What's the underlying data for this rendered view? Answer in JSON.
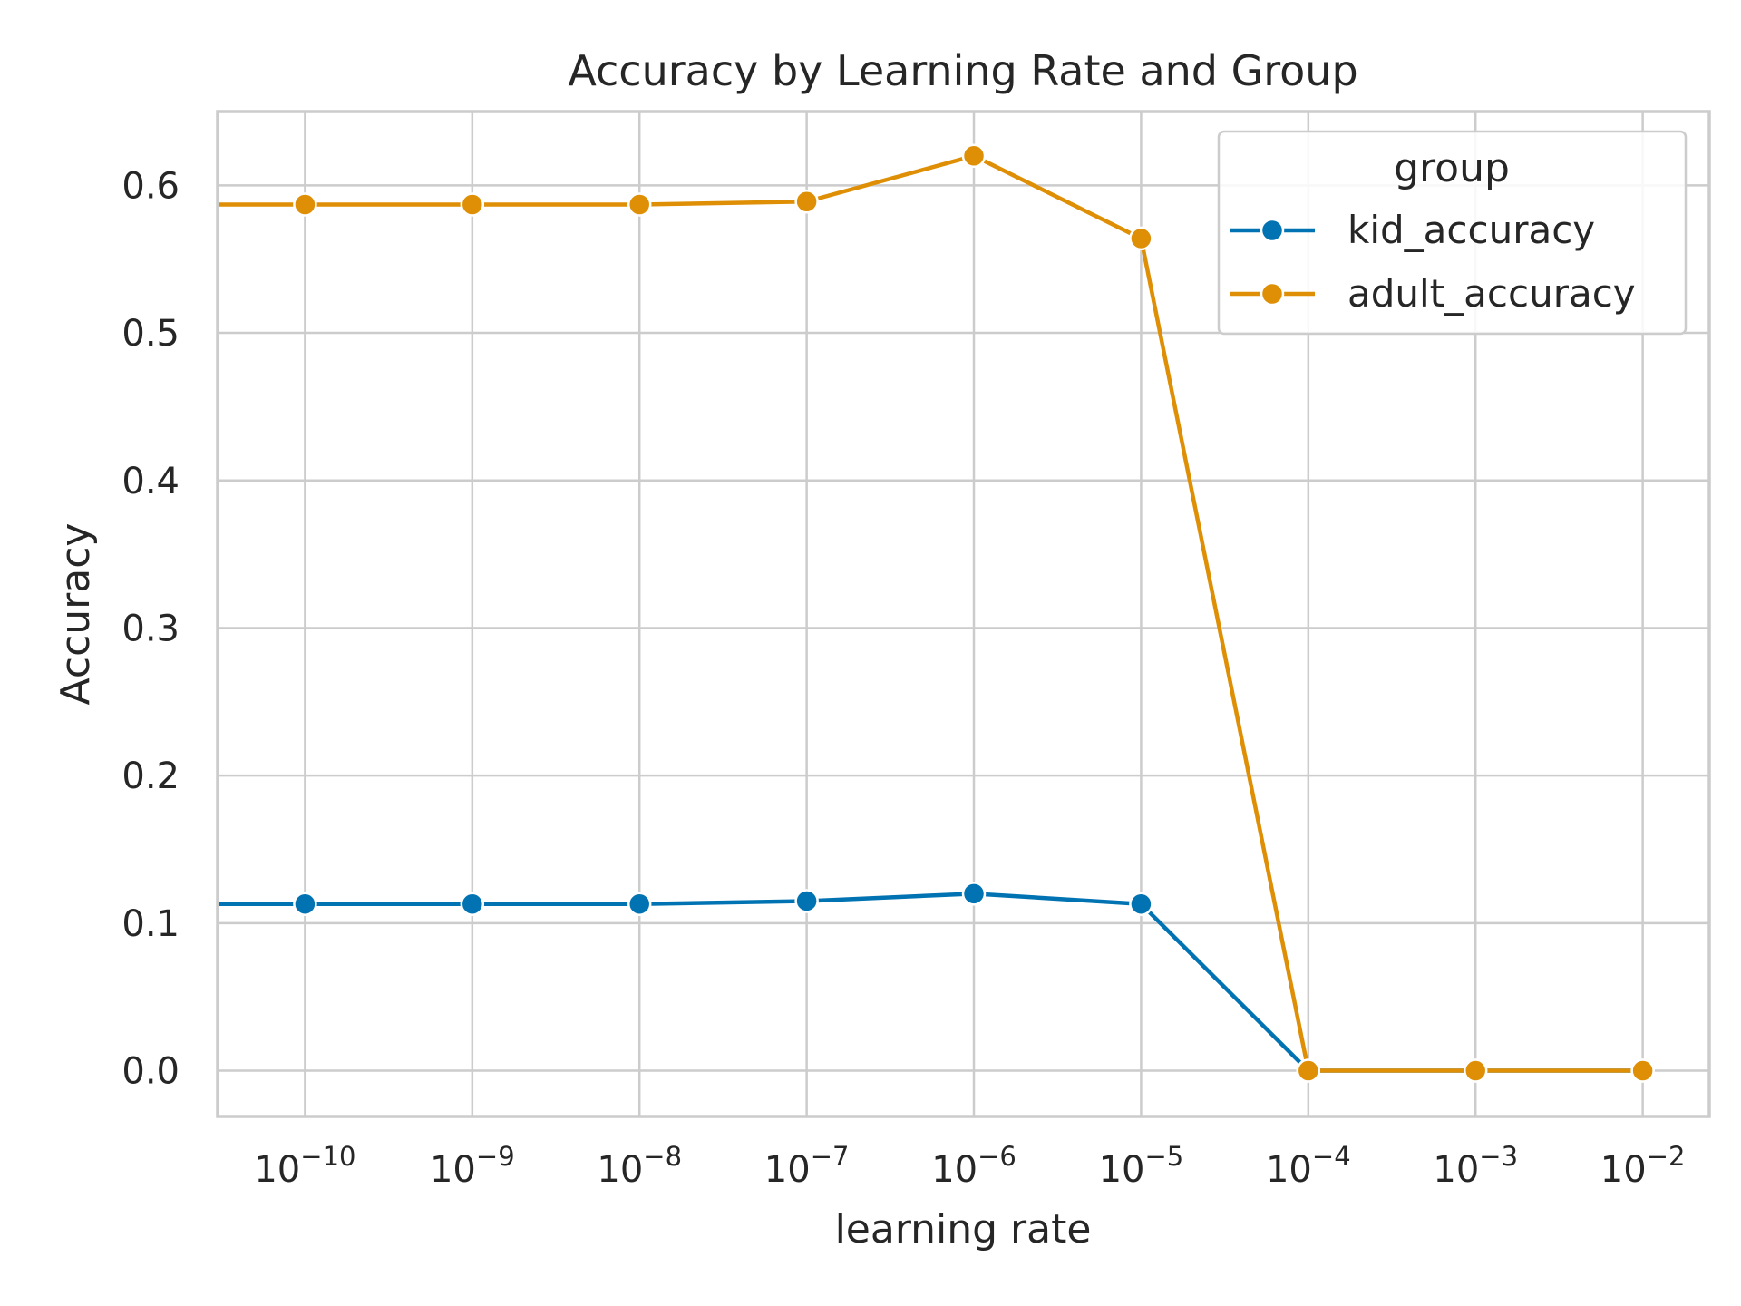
{
  "chart_data": {
    "type": "line",
    "title": "Accuracy by Learning Rate and Group",
    "xlabel": "learning rate",
    "ylabel": "Accuracy",
    "x_scale": "log",
    "x": [
      1e-10,
      1e-09,
      1e-08,
      1e-07,
      1e-06,
      1e-05,
      0.0001,
      0.001,
      0.01
    ],
    "xlim": [
      3e-11,
      0.025
    ],
    "ylim": [
      -0.031,
      0.65
    ],
    "x_ticks": [
      {
        "base": "10",
        "exp": "−10",
        "value": 1e-10
      },
      {
        "base": "10",
        "exp": "−9",
        "value": 1e-09
      },
      {
        "base": "10",
        "exp": "−8",
        "value": 1e-08
      },
      {
        "base": "10",
        "exp": "−7",
        "value": 1e-07
      },
      {
        "base": "10",
        "exp": "−6",
        "value": 1e-06
      },
      {
        "base": "10",
        "exp": "−5",
        "value": 1e-05
      },
      {
        "base": "10",
        "exp": "−4",
        "value": 0.0001
      },
      {
        "base": "10",
        "exp": "−3",
        "value": 0.001
      },
      {
        "base": "10",
        "exp": "−2",
        "value": 0.01
      }
    ],
    "y_ticks": [
      {
        "label": "0.0",
        "value": 0.0
      },
      {
        "label": "0.1",
        "value": 0.1
      },
      {
        "label": "0.2",
        "value": 0.2
      },
      {
        "label": "0.3",
        "value": 0.3
      },
      {
        "label": "0.4",
        "value": 0.4
      },
      {
        "label": "0.5",
        "value": 0.5
      },
      {
        "label": "0.6",
        "value": 0.6
      }
    ],
    "grid": true,
    "legend": {
      "title": "group",
      "position": "top-right"
    },
    "series": [
      {
        "name": "kid_accuracy",
        "color": "#0173b2",
        "values": [
          0.113,
          0.113,
          0.113,
          0.115,
          0.12,
          0.113,
          0.0,
          0.0,
          0.0
        ],
        "line_extends_to_left_edge": true
      },
      {
        "name": "adult_accuracy",
        "color": "#de8f05",
        "values": [
          0.587,
          0.587,
          0.587,
          0.589,
          0.62,
          0.564,
          0.0,
          0.0,
          0.0
        ],
        "line_extends_to_left_edge": true
      }
    ]
  }
}
